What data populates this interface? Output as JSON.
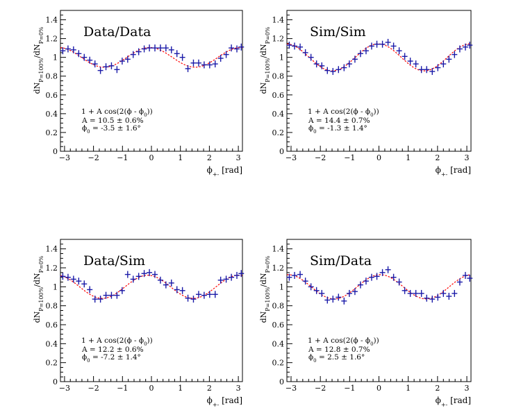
{
  "chart_data": [
    {
      "type": "scatter",
      "title": "Data/Data",
      "ylabel": "dN_{P=100%}/dN_{P=0%}",
      "xlabel": "ϕ_{+-} [rad]",
      "xlim": [
        -3.14159,
        3.14159
      ],
      "ylim": [
        0,
        1.5
      ],
      "xticks": [
        -3,
        -2,
        -1,
        0,
        1,
        2,
        3
      ],
      "yticks": [
        0,
        0.2,
        0.4,
        0.6,
        0.8,
        1,
        1.2,
        1.4
      ],
      "annotation": [
        "1 + A cos(2(ϕ - ϕ₀))",
        "A = 10.5 ± 0.6%",
        "ϕ₀ = -3.5 ± 1.6°"
      ],
      "fit": {
        "A": 0.105,
        "phi0_deg": -3.5
      },
      "series": [
        {
          "name": "",
          "x": [
            -3.06,
            -2.88,
            -2.69,
            -2.51,
            -2.32,
            -2.13,
            -1.95,
            -1.76,
            -1.57,
            -1.38,
            -1.19,
            -1.01,
            -0.82,
            -0.63,
            -0.44,
            -0.25,
            -0.07,
            0.12,
            0.31,
            0.5,
            0.69,
            0.88,
            1.07,
            1.26,
            1.45,
            1.63,
            1.82,
            2.01,
            2.2,
            2.39,
            2.58,
            2.76,
            2.95,
            3.1
          ],
          "y": [
            1.07,
            1.09,
            1.08,
            1.04,
            1.0,
            0.97,
            0.93,
            0.86,
            0.9,
            0.91,
            0.87,
            0.96,
            0.98,
            1.03,
            1.06,
            1.09,
            1.1,
            1.1,
            1.1,
            1.1,
            1.08,
            1.04,
            1.0,
            0.88,
            0.94,
            0.94,
            0.92,
            0.92,
            0.93,
            0.99,
            1.03,
            1.1,
            1.09,
            1.11
          ]
        }
      ]
    },
    {
      "type": "scatter",
      "title": "Sim/Sim",
      "ylabel": "dN_{P=100%}/dN_{P=0%}",
      "xlabel": "ϕ_{+-} [rad]",
      "xlim": [
        -3.14159,
        3.14159
      ],
      "ylim": [
        0,
        1.5
      ],
      "xticks": [
        -3,
        -2,
        -1,
        0,
        1,
        2,
        3
      ],
      "yticks": [
        0,
        0.2,
        0.4,
        0.6,
        0.8,
        1,
        1.2,
        1.4
      ],
      "annotation": [
        "1 + A cos(2(ϕ - ϕ₀))",
        "A = 14.4 ± 0.7%",
        "ϕ₀ = -1.3 ± 1.4°"
      ],
      "fit": {
        "A": 0.144,
        "phi0_deg": -1.3
      },
      "series": [
        {
          "name": "",
          "x": [
            -3.06,
            -2.88,
            -2.69,
            -2.51,
            -2.32,
            -2.13,
            -1.95,
            -1.76,
            -1.57,
            -1.38,
            -1.19,
            -1.01,
            -0.82,
            -0.63,
            -0.44,
            -0.25,
            -0.07,
            0.12,
            0.31,
            0.5,
            0.69,
            0.88,
            1.07,
            1.26,
            1.45,
            1.63,
            1.82,
            2.01,
            2.2,
            2.39,
            2.58,
            2.76,
            2.95,
            3.1
          ],
          "y": [
            1.13,
            1.12,
            1.11,
            1.05,
            1.0,
            0.93,
            0.91,
            0.86,
            0.85,
            0.87,
            0.89,
            0.93,
            0.98,
            1.04,
            1.07,
            1.12,
            1.14,
            1.14,
            1.16,
            1.12,
            1.07,
            1.01,
            0.96,
            0.93,
            0.87,
            0.87,
            0.85,
            0.89,
            0.93,
            0.98,
            1.03,
            1.09,
            1.11,
            1.13
          ]
        }
      ]
    },
    {
      "type": "scatter",
      "title": "Data/Sim",
      "ylabel": "dN_{P=100%}/dN_{P=0%}",
      "xlabel": "ϕ_{+-} [rad]",
      "xlim": [
        -3.14159,
        3.14159
      ],
      "ylim": [
        0,
        1.5
      ],
      "xticks": [
        -3,
        -2,
        -1,
        0,
        1,
        2,
        3
      ],
      "yticks": [
        0,
        0.2,
        0.4,
        0.6,
        0.8,
        1,
        1.2,
        1.4
      ],
      "annotation": [
        "1 + A cos(2(ϕ - ϕ₀))",
        "A = 12.2 ± 0.6%",
        "ϕ₀ = -7.2 ± 1.4°"
      ],
      "fit": {
        "A": 0.122,
        "phi0_deg": -7.2
      },
      "series": [
        {
          "name": "",
          "x": [
            -3.06,
            -2.88,
            -2.69,
            -2.51,
            -2.32,
            -2.13,
            -1.95,
            -1.76,
            -1.57,
            -1.38,
            -1.19,
            -1.01,
            -0.82,
            -0.63,
            -0.44,
            -0.25,
            -0.07,
            0.12,
            0.31,
            0.5,
            0.69,
            0.88,
            1.07,
            1.26,
            1.45,
            1.63,
            1.82,
            2.01,
            2.2,
            2.39,
            2.58,
            2.76,
            2.95,
            3.1
          ],
          "y": [
            1.11,
            1.1,
            1.08,
            1.06,
            1.03,
            0.97,
            0.87,
            0.87,
            0.91,
            0.91,
            0.91,
            0.96,
            1.13,
            1.08,
            1.11,
            1.14,
            1.15,
            1.13,
            1.07,
            1.02,
            1.04,
            0.97,
            0.96,
            0.88,
            0.87,
            0.92,
            0.91,
            0.92,
            0.92,
            1.07,
            1.08,
            1.1,
            1.12,
            1.14
          ]
        }
      ]
    },
    {
      "type": "scatter",
      "title": "Sim/Data",
      "ylabel": "dN_{P=100%}/dN_{P=0%}",
      "xlabel": "ϕ_{+-} [rad]",
      "xlim": [
        -3.14159,
        3.14159
      ],
      "ylim": [
        0,
        1.5
      ],
      "xticks": [
        -3,
        -2,
        -1,
        0,
        1,
        2,
        3
      ],
      "yticks": [
        0,
        0.2,
        0.4,
        0.6,
        0.8,
        1,
        1.2,
        1.4
      ],
      "annotation": [
        "1 + A cos(2(ϕ - ϕ₀))",
        "A = 12.8 ± 0.7%",
        "ϕ₀ = 2.5 ± 1.6°"
      ],
      "fit": {
        "A": 0.128,
        "phi0_deg": 2.5
      },
      "series": [
        {
          "name": "",
          "x": [
            -3.06,
            -2.88,
            -2.69,
            -2.51,
            -2.32,
            -2.13,
            -1.95,
            -1.76,
            -1.57,
            -1.38,
            -1.19,
            -1.01,
            -0.82,
            -0.63,
            -0.44,
            -0.25,
            -0.07,
            0.12,
            0.31,
            0.5,
            0.69,
            0.88,
            1.07,
            1.26,
            1.45,
            1.63,
            1.82,
            2.01,
            2.2,
            2.39,
            2.58,
            2.76,
            2.95,
            3.1
          ],
          "y": [
            1.1,
            1.12,
            1.13,
            1.06,
            1.0,
            0.96,
            0.93,
            0.86,
            0.87,
            0.89,
            0.85,
            0.93,
            0.95,
            1.02,
            1.06,
            1.1,
            1.11,
            1.15,
            1.18,
            1.1,
            1.05,
            0.96,
            0.93,
            0.93,
            0.93,
            0.88,
            0.87,
            0.89,
            0.93,
            0.9,
            0.93,
            1.05,
            1.12,
            1.09
          ]
        }
      ]
    }
  ],
  "colors": {
    "points": "#1a1aa8",
    "fit": "#ff0000",
    "axes": "#000000"
  }
}
